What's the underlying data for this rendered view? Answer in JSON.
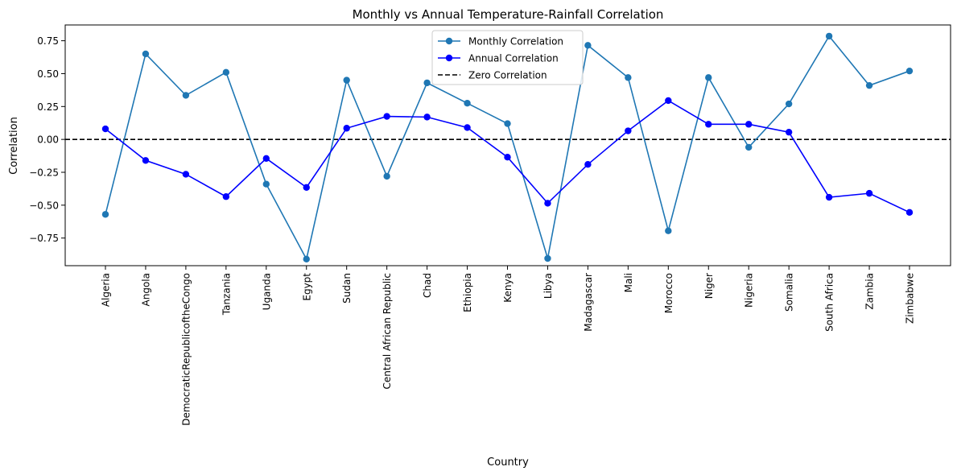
{
  "chart_data": {
    "type": "line",
    "title": "Monthly vs Annual Temperature-Rainfall Correlation",
    "xlabel": "Country",
    "ylabel": "Correlation",
    "categories": [
      "Algeria",
      "Angola",
      "DemocraticRepublicoftheCongo",
      "Tanzania",
      "Uganda",
      "Egypt",
      "Sudan",
      "Central African Republic",
      "Chad",
      "Ethiopia",
      "Kenya",
      "Libya",
      "Madagascar",
      "Mali",
      "Morocco",
      "Niger",
      "Nigeria",
      "Somalia",
      "South Africa",
      "Zambia",
      "Zimbabwe"
    ],
    "ylim": [
      -0.96,
      0.87
    ],
    "yticks": [
      -0.75,
      -0.5,
      -0.25,
      0.0,
      0.25,
      0.5,
      0.75
    ],
    "ytick_labels": [
      "−0.75",
      "−0.50",
      "−0.25",
      "0.00",
      "0.25",
      "0.50",
      "0.75"
    ],
    "grid": false,
    "legend_position": "top-center",
    "series": [
      {
        "name": "Monthly Correlation",
        "color": "#1f77b4",
        "values": [
          -0.57,
          0.65,
          0.335,
          0.51,
          -0.34,
          -0.91,
          0.45,
          -0.28,
          0.43,
          0.275,
          0.12,
          -0.905,
          0.715,
          0.47,
          -0.695,
          0.47,
          -0.06,
          0.27,
          0.785,
          0.41,
          0.52
        ]
      },
      {
        "name": "Annual Correlation",
        "color": "#0000ff",
        "values": [
          0.08,
          -0.16,
          -0.265,
          -0.435,
          -0.145,
          -0.365,
          0.085,
          0.175,
          0.17,
          0.09,
          -0.135,
          -0.485,
          -0.19,
          0.065,
          0.295,
          0.115,
          0.115,
          0.055,
          -0.44,
          -0.41,
          -0.555
        ]
      }
    ],
    "reference_line": {
      "name": "Zero Correlation",
      "value": 0,
      "color": "#000000",
      "style": "dashed"
    }
  }
}
